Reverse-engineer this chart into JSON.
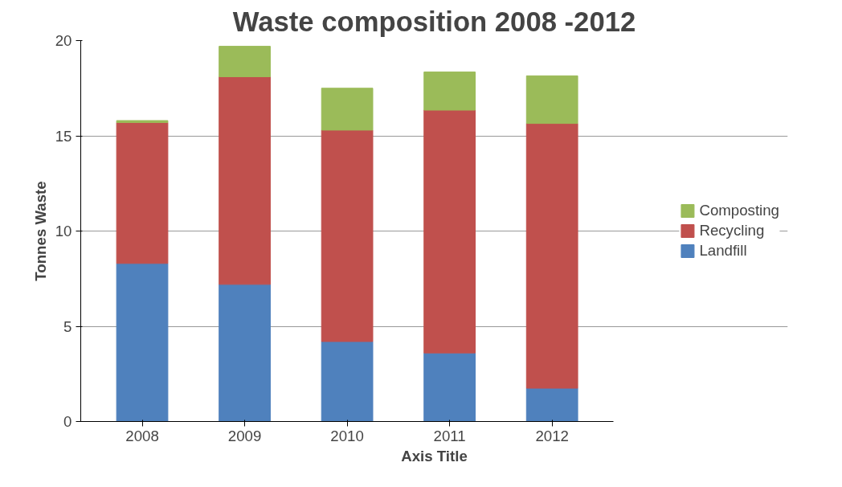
{
  "chart_data": {
    "type": "bar",
    "title": "Waste composition 2008 -2012",
    "xlabel": "Axis Title",
    "ylabel": "Tonnes Waste",
    "categories": [
      "2008",
      "2009",
      "2010",
      "2011",
      "2012"
    ],
    "stacked": true,
    "series": [
      {
        "name": "Landfill",
        "color": "#4f81bd",
        "values": [
          8.3,
          7.2,
          4.2,
          3.6,
          1.75
        ]
      },
      {
        "name": "Recycling",
        "color": "#c0504d",
        "values": [
          7.4,
          10.9,
          11.1,
          12.75,
          13.9
        ]
      },
      {
        "name": "Composting",
        "color": "#9bbb59",
        "values": [
          0.1,
          1.6,
          2.2,
          2.0,
          2.5
        ]
      }
    ],
    "ylim": [
      0,
      20
    ],
    "yticks": [
      0,
      5,
      10,
      15,
      20
    ],
    "grid": "y",
    "legend": "right"
  }
}
